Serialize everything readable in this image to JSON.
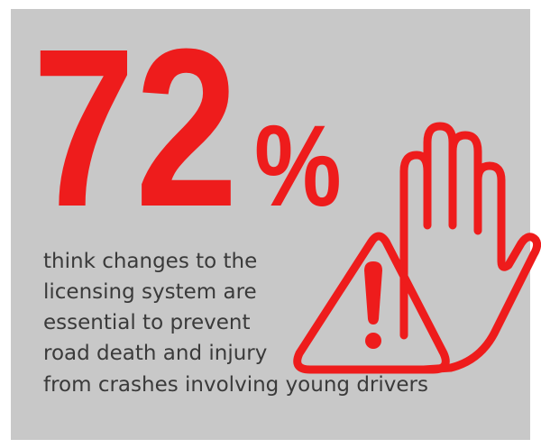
{
  "stat": {
    "number": "72",
    "symbol": "%"
  },
  "caption": [
    "think changes to the",
    "licensing system are",
    "essential to prevent",
    "road death and injury",
    "from crashes involving young drivers"
  ]
}
